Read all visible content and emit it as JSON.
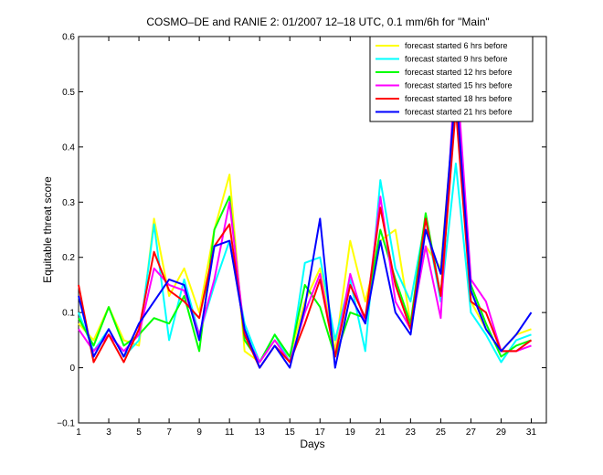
{
  "chart_data": {
    "type": "line",
    "title": "COSMO–DE and RANIE 2: 01/2007 12–18 UTC, 0.1 mm/6h for \"Main\"",
    "xlabel": "Days",
    "ylabel": "Equitable threat score",
    "xlim": [
      1,
      32
    ],
    "ylim": [
      -0.1,
      0.6
    ],
    "xticks": [
      1,
      3,
      5,
      7,
      9,
      11,
      13,
      15,
      17,
      19,
      21,
      23,
      25,
      27,
      29,
      31
    ],
    "xtick_labels": [
      "1",
      "3",
      "5",
      "7",
      "9",
      "11",
      "13",
      "15",
      "17",
      "19",
      "21",
      "23",
      "25",
      "27",
      "29",
      "31"
    ],
    "yticks": [
      -0.1,
      0,
      0.1,
      0.2,
      0.3,
      0.4,
      0.5,
      0.6
    ],
    "ytick_labels": [
      "−0.1",
      "0",
      "0.1",
      "0.2",
      "0.3",
      "0.4",
      "0.5",
      "0.6"
    ],
    "legend_position": "top-right",
    "grid": false,
    "x": [
      1,
      2,
      3,
      4,
      5,
      6,
      7,
      8,
      9,
      10,
      11,
      12,
      13,
      14,
      15,
      16,
      17,
      18,
      19,
      20,
      21,
      22,
      23,
      24,
      25,
      26,
      27,
      28,
      29,
      30,
      31
    ],
    "series": [
      {
        "name": "forecast started 6 hrs before",
        "color": "#ffff00",
        "values": [
          0.08,
          0.05,
          0.11,
          0.05,
          0.04,
          0.27,
          0.13,
          0.18,
          0.1,
          0.25,
          0.35,
          0.03,
          0.01,
          0.05,
          0.02,
          0.12,
          0.18,
          0.03,
          0.23,
          0.12,
          0.23,
          0.25,
          0.08,
          0.22,
          0.18,
          0.5,
          0.12,
          0.07,
          0.03,
          0.06,
          0.07
        ]
      },
      {
        "name": "forecast started 9 hrs before",
        "color": "#00ffff",
        "values": [
          0.1,
          0.03,
          0.07,
          0.02,
          0.05,
          0.26,
          0.05,
          0.16,
          0.06,
          0.15,
          0.23,
          0.08,
          0.01,
          0.06,
          0.01,
          0.19,
          0.2,
          0.05,
          0.16,
          0.03,
          0.34,
          0.18,
          0.12,
          0.27,
          0.12,
          0.37,
          0.1,
          0.06,
          0.01,
          0.05,
          0.06
        ]
      },
      {
        "name": "forecast started 12 hrs before",
        "color": "#00ff00",
        "values": [
          0.09,
          0.04,
          0.11,
          0.04,
          0.06,
          0.09,
          0.08,
          0.13,
          0.03,
          0.25,
          0.31,
          0.05,
          0.01,
          0.06,
          0.02,
          0.15,
          0.11,
          0.02,
          0.1,
          0.09,
          0.25,
          0.16,
          0.08,
          0.28,
          0.13,
          0.48,
          0.15,
          0.08,
          0.02,
          0.04,
          0.05
        ]
      },
      {
        "name": "forecast started 15 hrs before",
        "color": "#ff00ff",
        "values": [
          0.07,
          0.03,
          0.06,
          0.03,
          0.06,
          0.18,
          0.15,
          0.14,
          0.06,
          0.16,
          0.3,
          0.06,
          0.01,
          0.05,
          0.01,
          0.1,
          0.17,
          0.02,
          0.17,
          0.08,
          0.31,
          0.12,
          0.07,
          0.22,
          0.09,
          0.56,
          0.16,
          0.12,
          0.03,
          0.03,
          0.04
        ]
      },
      {
        "name": "forecast started 18 hrs before",
        "color": "#ff0000",
        "values": [
          0.15,
          0.01,
          0.06,
          0.01,
          0.07,
          0.21,
          0.14,
          0.12,
          0.09,
          0.22,
          0.26,
          0.06,
          0.0,
          0.04,
          0.01,
          0.08,
          0.16,
          0.02,
          0.15,
          0.09,
          0.29,
          0.15,
          0.07,
          0.27,
          0.13,
          0.47,
          0.12,
          0.1,
          0.03,
          0.03,
          0.05
        ]
      },
      {
        "name": "forecast started 21 hrs before",
        "color": "#0000ff",
        "values": [
          0.13,
          0.02,
          0.07,
          0.02,
          0.08,
          0.12,
          0.16,
          0.15,
          0.05,
          0.22,
          0.23,
          0.07,
          0.0,
          0.04,
          0.0,
          0.11,
          0.27,
          0.0,
          0.13,
          0.08,
          0.23,
          0.1,
          0.06,
          0.25,
          0.17,
          0.51,
          0.14,
          0.07,
          0.03,
          0.06,
          0.1
        ]
      }
    ]
  }
}
